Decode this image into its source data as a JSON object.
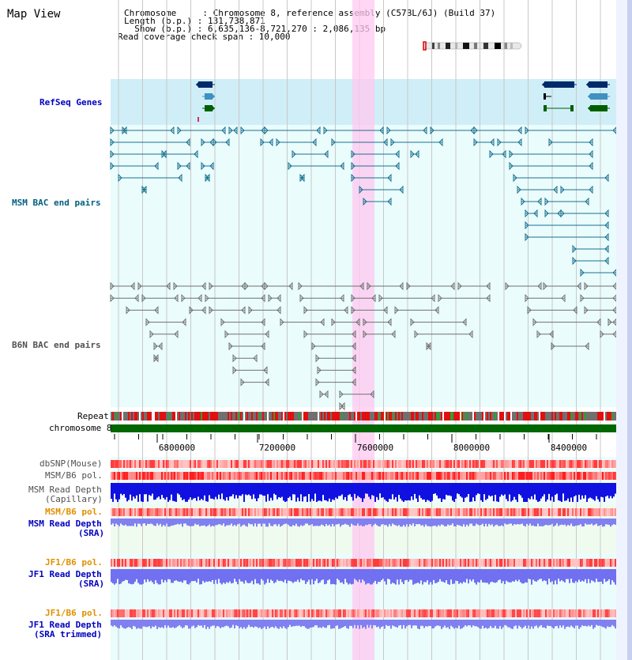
{
  "title": "Map View",
  "header": {
    "lines": [
      "Chromosome     : Chromosome 8, reference assembly (C57BL/6J) (Build 37)",
      "Length (b.p.) : 131,738,871",
      "  Show (b.p.) : 6,635,136-8,721,270 : 2,086,135 bp",
      "Read coverage check span : 10,000"
    ]
  },
  "tracks": {
    "refseq": "RefSeq Genes",
    "msm_bac": "MSM BAC end pairs",
    "b6n_bac": "B6N BAC end pairs",
    "repeat": "Repeat",
    "chromosome": "chromosome 8",
    "dbsnp": "dbSNP(Mouse)",
    "msm_b6_pol_1": "MSM/B6 pol.",
    "msm_depth_cap_1": "MSM Read Depth",
    "msm_depth_cap_2": "(Capillary)",
    "msm_b6_pol_2": "MSM/B6 pol.",
    "msm_depth_sra_1": "MSM Read Depth",
    "msm_depth_sra_2": "(SRA)",
    "jf1_b6_pol_1": "JF1/B6 pol.",
    "jf1_depth_sra_1": "JF1 Read Depth",
    "jf1_depth_sra_2": "(SRA)",
    "jf1_b6_pol_2": "JF1/B6 pol.",
    "jf1_depth_trim_1": "JF1 Read Depth",
    "jf1_depth_trim_2": "(SRA trimmed)"
  },
  "axis": {
    "ticks": [
      "6800000",
      "7200000",
      "7600000",
      "8000000",
      "8400000"
    ]
  },
  "colors": {
    "msm_label": "#006080",
    "blue_label": "#0000c0",
    "orange_label": "#e09000",
    "gray_label": "#505050",
    "refseq_dark": "#002a6a",
    "refseq_mid": "#4090c0",
    "refseq_green": "#006000",
    "highlight": "#ffc8f0",
    "chrom_green": "#006600"
  }
}
